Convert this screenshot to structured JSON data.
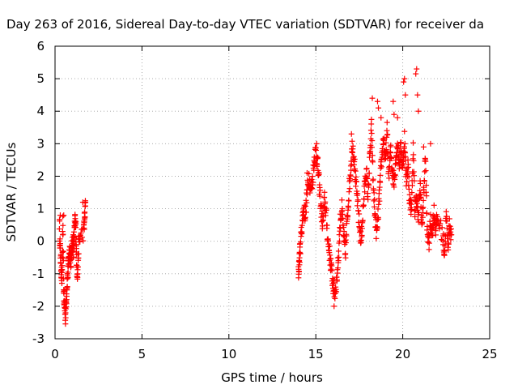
{
  "chart_data": {
    "type": "scatter",
    "title": "Day 263 of 2016, Sidereal Day-to-day VTEC variation (SDTVAR) for receiver da",
    "xlabel": "GPS time / hours",
    "ylabel": "SDTVAR / TECUs",
    "xlim": [
      0,
      25
    ],
    "ylim": [
      -3,
      6
    ],
    "xticks": [
      0,
      5,
      10,
      15,
      20,
      25
    ],
    "yticks": [
      -3,
      -2,
      -1,
      0,
      1,
      2,
      3,
      4,
      5,
      6
    ],
    "grid": true,
    "marker": "+",
    "color": "#ff0000",
    "trace": [
      [
        0.25,
        0.6
      ],
      [
        0.3,
        -0.3
      ],
      [
        0.35,
        -0.8
      ],
      [
        0.4,
        -1.2
      ],
      [
        0.45,
        0.5
      ],
      [
        0.5,
        -1.6
      ],
      [
        0.55,
        -2.0
      ],
      [
        0.6,
        -2.3
      ],
      [
        0.65,
        -1.8
      ],
      [
        0.7,
        -1.2
      ],
      [
        0.75,
        -0.9
      ],
      [
        0.8,
        -0.5
      ],
      [
        0.85,
        -0.2
      ],
      [
        0.9,
        -0.6
      ],
      [
        0.95,
        -0.4
      ],
      [
        1.0,
        0.0
      ],
      [
        1.05,
        -0.3
      ],
      [
        1.1,
        0.2
      ],
      [
        1.15,
        0.6
      ],
      [
        1.2,
        0.4
      ],
      [
        1.25,
        -0.8
      ],
      [
        1.3,
        -1.0
      ],
      [
        1.35,
        -0.2
      ],
      [
        1.4,
        0.1
      ],
      [
        1.65,
        0.3
      ],
      [
        1.7,
        0.7
      ],
      [
        1.75,
        1.2
      ],
      [
        14.0,
        -1.0
      ],
      [
        14.05,
        -0.6
      ],
      [
        14.1,
        -0.2
      ],
      [
        14.2,
        0.5
      ],
      [
        14.3,
        1.0
      ],
      [
        14.4,
        0.8
      ],
      [
        14.5,
        1.5
      ],
      [
        14.6,
        2.0
      ],
      [
        14.7,
        1.6
      ],
      [
        14.8,
        1.8
      ],
      [
        14.9,
        2.5
      ],
      [
        15.0,
        2.8
      ],
      [
        15.1,
        2.4
      ],
      [
        15.2,
        1.7
      ],
      [
        15.3,
        1.0
      ],
      [
        15.4,
        0.5
      ],
      [
        15.5,
        1.3
      ],
      [
        15.6,
        0.8
      ],
      [
        15.7,
        0.0
      ],
      [
        15.8,
        -0.4
      ],
      [
        15.9,
        -0.9
      ],
      [
        16.0,
        -1.4
      ],
      [
        16.1,
        -1.6
      ],
      [
        16.2,
        -1.2
      ],
      [
        16.3,
        -0.5
      ],
      [
        16.4,
        0.6
      ],
      [
        16.5,
        1.0
      ],
      [
        16.6,
        0.2
      ],
      [
        16.7,
        -0.4
      ],
      [
        16.8,
        0.6
      ],
      [
        16.9,
        1.5
      ],
      [
        17.0,
        2.2
      ],
      [
        17.1,
        3.0
      ],
      [
        17.2,
        2.6
      ],
      [
        17.3,
        1.8
      ],
      [
        17.4,
        1.2
      ],
      [
        17.5,
        0.5
      ],
      [
        17.6,
        0.0
      ],
      [
        17.7,
        0.8
      ],
      [
        17.8,
        1.6
      ],
      [
        17.9,
        2.2
      ],
      [
        18.0,
        1.4
      ],
      [
        18.1,
        2.5
      ],
      [
        18.2,
        3.5
      ],
      [
        18.3,
        1.8
      ],
      [
        18.4,
        0.8
      ],
      [
        18.5,
        0.2
      ],
      [
        18.6,
        0.9
      ],
      [
        18.7,
        1.8
      ],
      [
        18.8,
        2.6
      ],
      [
        18.9,
        3.2
      ],
      [
        19.0,
        2.4
      ],
      [
        19.1,
        3.4
      ],
      [
        19.2,
        2.0
      ],
      [
        19.3,
        2.8
      ],
      [
        19.4,
        2.2
      ],
      [
        19.5,
        1.8
      ],
      [
        19.6,
        2.6
      ],
      [
        19.7,
        3.0
      ],
      [
        19.8,
        2.4
      ],
      [
        19.9,
        2.9
      ],
      [
        20.0,
        2.2
      ],
      [
        20.1,
        3.2
      ],
      [
        20.2,
        1.8
      ],
      [
        20.3,
        2.4
      ],
      [
        20.4,
        1.2
      ],
      [
        20.5,
        1.0
      ],
      [
        20.6,
        2.8
      ],
      [
        20.7,
        0.9
      ],
      [
        20.8,
        1.4
      ],
      [
        20.9,
        0.6
      ],
      [
        21.0,
        1.8
      ],
      [
        21.1,
        0.4
      ],
      [
        21.2,
        1.4
      ],
      [
        21.3,
        2.6
      ],
      [
        21.4,
        0.4
      ],
      [
        21.5,
        -0.1
      ],
      [
        21.6,
        0.6
      ],
      [
        21.7,
        0.3
      ],
      [
        21.8,
        0.9
      ],
      [
        21.9,
        0.4
      ],
      [
        22.0,
        0.7
      ],
      [
        22.3,
        0.2
      ],
      [
        22.4,
        -0.4
      ],
      [
        22.5,
        0.8
      ],
      [
        22.6,
        -0.1
      ],
      [
        22.7,
        0.5
      ],
      [
        22.8,
        0.2
      ]
    ],
    "outliers": [
      [
        0.3,
        0.8
      ],
      [
        0.5,
        0.8
      ],
      [
        1.05,
        0.2
      ],
      [
        1.6,
        1.2
      ],
      [
        14.5,
        2.1
      ],
      [
        15.05,
        3.0
      ],
      [
        16.05,
        -2.0
      ],
      [
        17.05,
        3.3
      ],
      [
        18.25,
        4.4
      ],
      [
        18.55,
        4.3
      ],
      [
        18.75,
        3.8
      ],
      [
        18.6,
        4.1
      ],
      [
        19.45,
        4.3
      ],
      [
        19.5,
        3.9
      ],
      [
        20.05,
        4.9
      ],
      [
        20.1,
        5.0
      ],
      [
        20.15,
        4.5
      ],
      [
        20.8,
        5.3
      ],
      [
        20.85,
        4.5
      ],
      [
        20.9,
        4.0
      ],
      [
        21.2,
        2.9
      ],
      [
        21.6,
        3.0
      ],
      [
        20.75,
        5.15
      ],
      [
        19.7,
        3.8
      ]
    ]
  }
}
